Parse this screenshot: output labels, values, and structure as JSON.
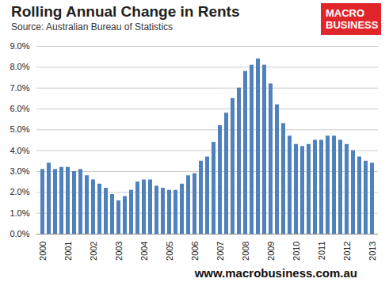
{
  "chart_data": {
    "type": "bar",
    "title": "Rolling Annual Change in Rents",
    "subtitle": "Source: Australian Bureau of Statistics",
    "caption": "www.macrobusiness.com.au",
    "logo": [
      "MACRO",
      "BUSINESS"
    ],
    "categories": [
      "2000",
      null,
      null,
      null,
      "2001",
      null,
      null,
      null,
      "2002",
      null,
      null,
      null,
      "2003",
      null,
      null,
      null,
      "2004",
      null,
      null,
      null,
      "2005",
      null,
      null,
      null,
      "2006",
      null,
      null,
      null,
      "2007",
      null,
      null,
      null,
      "2008",
      null,
      null,
      null,
      "2009",
      null,
      null,
      null,
      "2010",
      null,
      null,
      null,
      "2011",
      null,
      null,
      null,
      "2012",
      null,
      null,
      null,
      "2013"
    ],
    "values": [
      3.1,
      3.4,
      3.1,
      3.2,
      3.2,
      3.0,
      3.1,
      2.8,
      2.6,
      2.4,
      2.2,
      1.9,
      1.6,
      1.8,
      2.1,
      2.5,
      2.6,
      2.6,
      2.3,
      2.2,
      2.1,
      2.1,
      2.4,
      2.8,
      2.9,
      3.5,
      3.7,
      4.4,
      5.2,
      5.8,
      6.5,
      7.0,
      7.8,
      8.1,
      8.4,
      8.1,
      7.2,
      6.2,
      5.3,
      4.7,
      4.3,
      4.2,
      4.3,
      4.5,
      4.5,
      4.7,
      4.7,
      4.5,
      4.3,
      4.0,
      3.7,
      3.5,
      3.4
    ],
    "color": "#4f81bd",
    "ylim": [
      0,
      9
    ],
    "yticks": [
      {
        "value": 0,
        "label": "0.0%"
      },
      {
        "value": 1,
        "label": "1.0%"
      },
      {
        "value": 2,
        "label": "2.0%"
      },
      {
        "value": 3,
        "label": "3.0%"
      },
      {
        "value": 4,
        "label": "4.0%"
      },
      {
        "value": 5,
        "label": "5.0%"
      },
      {
        "value": 6,
        "label": "6.0%"
      },
      {
        "value": 7,
        "label": "7.0%"
      },
      {
        "value": 8,
        "label": "8.0%"
      },
      {
        "value": 9,
        "label": "9.0%"
      }
    ],
    "grid": true
  }
}
